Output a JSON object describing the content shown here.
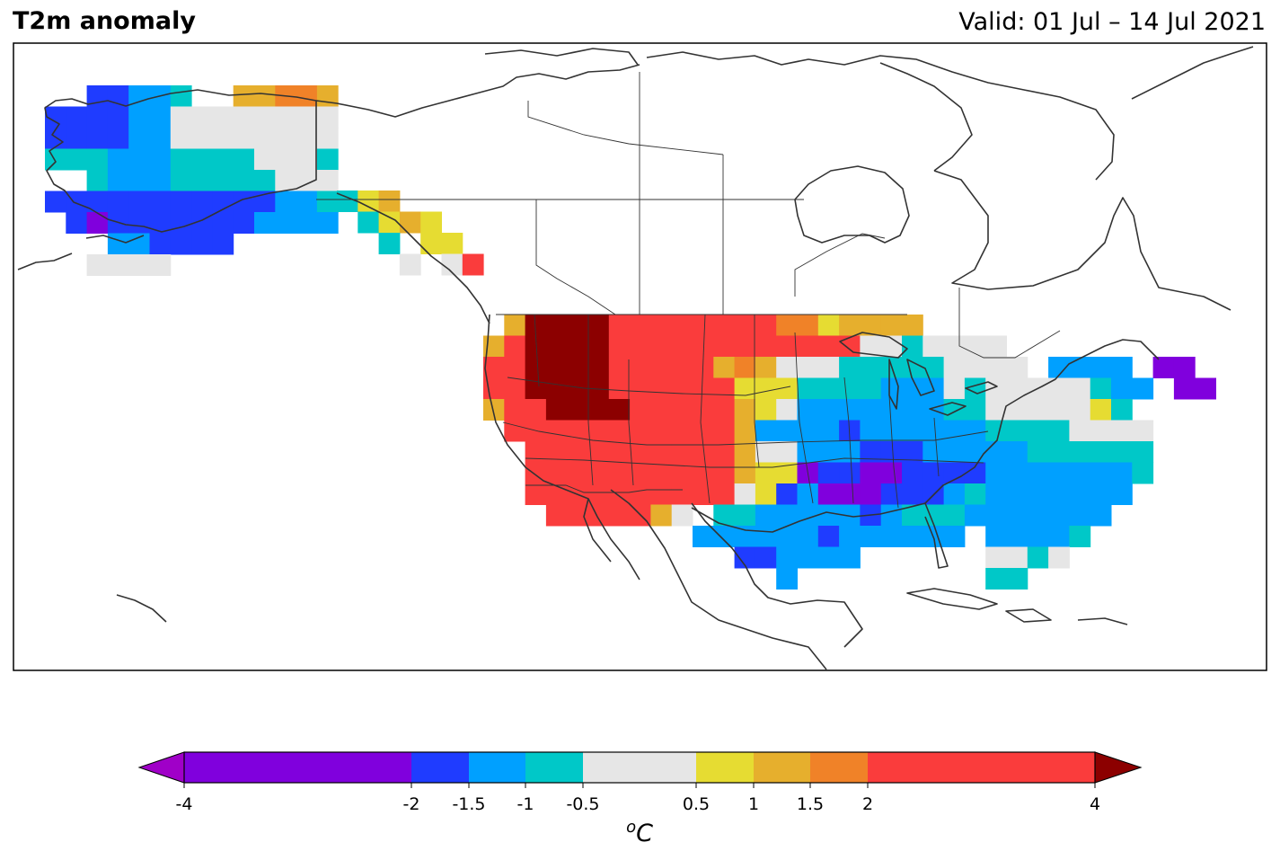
{
  "header": {
    "title": "T2m anomaly",
    "valid": "Valid: 01 Jul – 14 Jul 2021"
  },
  "colorbar": {
    "ticks": [
      "-4",
      "-2",
      "-1.5",
      "-1",
      "-0.5",
      "0.5",
      "1",
      "1.5",
      "2",
      "4"
    ],
    "unit_label": "oC",
    "bins": [
      {
        "range": [
          -4,
          -2
        ],
        "color": "#8000dd"
      },
      {
        "range": [
          -2,
          -1.5
        ],
        "color": "#1f3cff"
      },
      {
        "range": [
          -1.5,
          -1
        ],
        "color": "#00a0ff"
      },
      {
        "range": [
          -1,
          -0.5
        ],
        "color": "#00c8c8"
      },
      {
        "range": [
          -0.5,
          0.5
        ],
        "color": "#e6e6e6"
      },
      {
        "range": [
          0.5,
          1
        ],
        "color": "#e6dc32"
      },
      {
        "range": [
          1,
          1.5
        ],
        "color": "#e6af2d"
      },
      {
        "range": [
          1.5,
          2
        ],
        "color": "#f08228"
      },
      {
        "range": [
          2,
          4
        ],
        "color": "#fa3c3c"
      }
    ],
    "extend_low_color": "#a000c8",
    "extend_high_color": "#8c0000"
  },
  "map": {
    "region": "North America",
    "projection": "PlateCarree"
  }
}
